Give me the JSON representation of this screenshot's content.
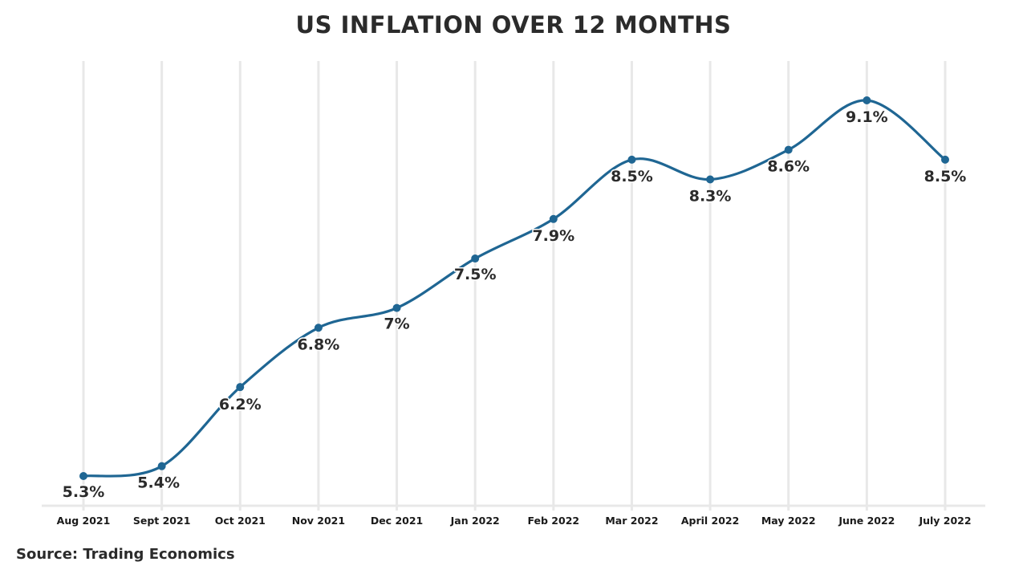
{
  "chart_data": {
    "type": "line",
    "title": "US INFLATION OVER 12 MONTHS",
    "source": "Source: Trading Economics",
    "xlabel": "",
    "ylabel": "",
    "categories": [
      "Aug 2021",
      "Sept 2021",
      "Oct 2021",
      "Nov 2021",
      "Dec 2021",
      "Jan 2022",
      "Feb 2022",
      "Mar 2022",
      "April 2022",
      "May 2022",
      "June 2022",
      "July 2022"
    ],
    "series": [
      {
        "name": "US Inflation",
        "values": [
          5.3,
          5.4,
          6.2,
          6.8,
          7.0,
          7.5,
          7.9,
          8.5,
          8.3,
          8.6,
          9.1,
          8.5
        ],
        "labels": [
          "5.3%",
          "5.4%",
          "6.2%",
          "6.8%",
          "7%",
          "7.5%",
          "7.9%",
          "8.5%",
          "8.3%",
          "8.6%",
          "9.1%",
          "8.5%"
        ],
        "color": "#1f6693"
      }
    ],
    "ylim": [
      4.95,
      9.3
    ],
    "grid": "vertical",
    "legend": "none"
  }
}
